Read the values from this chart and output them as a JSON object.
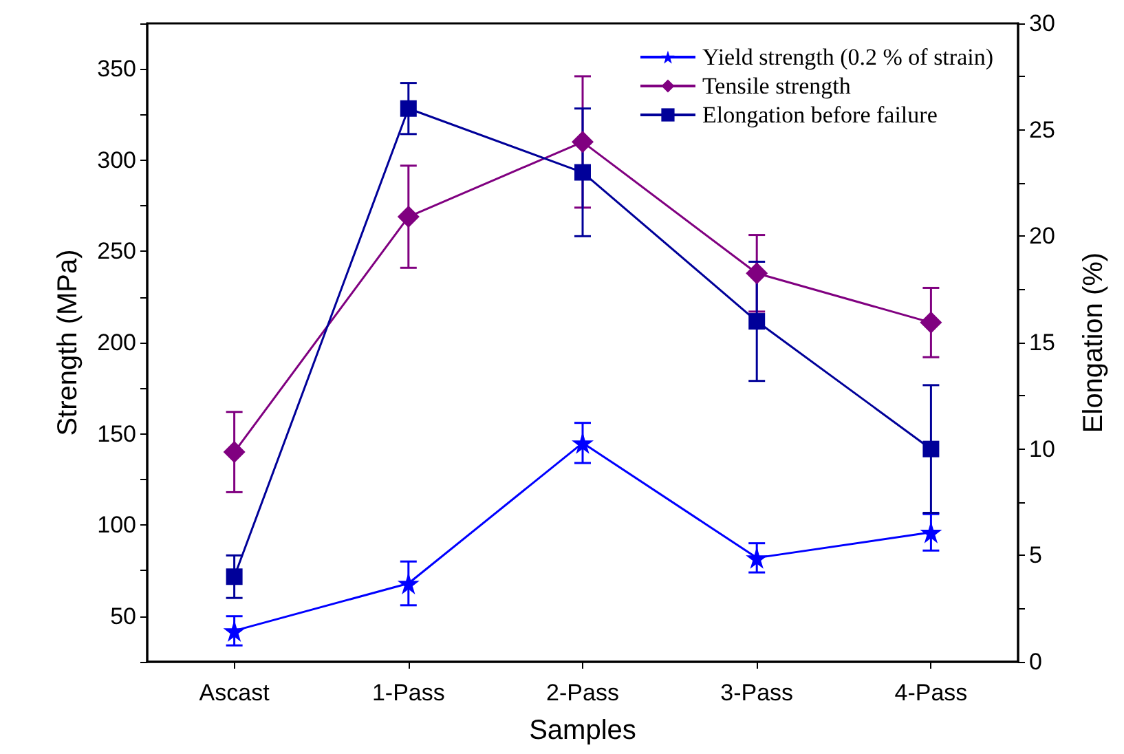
{
  "chart_data": {
    "type": "line",
    "xlabel": "Samples",
    "ylabel": "Strength (MPa)",
    "y2label": "Elongation (%)",
    "categories": [
      "Ascast",
      "1-Pass",
      "2-Pass",
      "3-Pass",
      "4-Pass"
    ],
    "series": [
      {
        "name": "Yield strength (0.2 % of strain)",
        "color": "#0000ff",
        "marker": "star",
        "values": [
          42,
          68,
          145,
          82,
          96
        ],
        "errors": [
          8,
          12,
          11,
          8,
          10
        ]
      },
      {
        "name": "Tensile strength",
        "color": "#800080",
        "marker": "diamond",
        "values": [
          140,
          269,
          310,
          238,
          211
        ],
        "errors": [
          22,
          28,
          36,
          21,
          19
        ]
      },
      {
        "name": "Elongation before failure",
        "color": "#000099",
        "marker": "square",
        "axis": "y2",
        "values": [
          4,
          26,
          23,
          16,
          10
        ],
        "errors": [
          1,
          1.2,
          3,
          2.8,
          3
        ]
      }
    ],
    "ylim": [
      25,
      375
    ],
    "yticks": [
      {
        "value": 25,
        "label": null
      },
      50,
      {
        "value": 75,
        "label": null
      },
      100,
      {
        "value": 125,
        "label": null
      },
      150,
      {
        "value": 175,
        "label": null
      },
      200,
      {
        "value": 225,
        "label": null
      },
      250,
      {
        "value": 275,
        "label": null
      },
      300,
      {
        "value": 325,
        "label": null
      },
      350,
      {
        "value": 375,
        "label": null
      }
    ],
    "y2lim": [
      0,
      30
    ],
    "y2ticks": [
      0,
      {
        "value": 2.5,
        "label": null
      },
      5,
      {
        "value": 7.5,
        "label": null
      },
      10,
      {
        "value": 12.5,
        "label": null
      },
      15,
      {
        "value": 17.5,
        "label": null
      },
      20,
      {
        "value": 22.5,
        "label": null
      },
      25,
      {
        "value": 27.5,
        "label": null
      },
      30
    ],
    "grid": false,
    "legend": "top right",
    "line_style": "solid"
  }
}
